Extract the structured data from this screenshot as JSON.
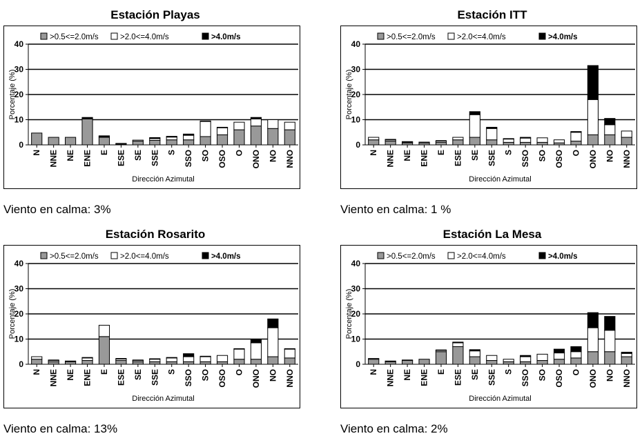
{
  "colors": {
    "low": "#999999",
    "mid": "#ffffff",
    "high": "#000000",
    "grid": "#000000"
  },
  "charts": [
    {
      "title": "Estación Playas",
      "calm_text": "Viento en calma: 3%",
      "chart_data": {
        "type": "bar",
        "stacked": true,
        "categories": [
          "N",
          "NNE",
          "NE",
          "ENE",
          "E",
          "ESE",
          "SE",
          "SSE",
          "S",
          "SSO",
          "SO",
          "OSO",
          "O",
          "ONO",
          "NO",
          "NNO"
        ],
        "series": [
          {
            "name": ">0.5<=2.0m/s",
            "values": [
              4.7,
              3.0,
              3.0,
              10.3,
              3.0,
              0.3,
              1.5,
              1.8,
              2.0,
              2.0,
              3.3,
              4.0,
              6.0,
              7.5,
              6.5,
              6.0
            ]
          },
          {
            "name": ">2.0<=4.0m/s",
            "values": [
              0,
              0,
              0,
              0,
              0.3,
              0.3,
              0.4,
              0.7,
              1.1,
              1.8,
              6.0,
              2.8,
              3.0,
              2.8,
              3.5,
              3.0
            ]
          },
          {
            "name": ">4.0m/s",
            "values": [
              0,
              0,
              0,
              0.6,
              0.3,
              0,
              0,
              0.4,
              0.3,
              0.5,
              0.2,
              0.2,
              0,
              0.6,
              0,
              0
            ]
          }
        ],
        "ylabel": "Porcentaje (%)",
        "xlabel": "Dirección Azimutal",
        "ylim": [
          0,
          40
        ],
        "yticks": [
          "0",
          "10",
          "20",
          "30",
          "40"
        ],
        "grid": true,
        "legend_position": "top"
      }
    },
    {
      "title": "Estación ITT",
      "calm_text": "Viento en calma: 1 %",
      "chart_data": {
        "type": "bar",
        "stacked": true,
        "categories": [
          "N",
          "NNE",
          "NE",
          "ENE",
          "E",
          "ESE",
          "SE",
          "SSE",
          "S",
          "SSO",
          "SO",
          "OSO",
          "O",
          "ONO",
          "NO",
          "NNO"
        ],
        "series": [
          {
            "name": ">0.5<=2.0m/s",
            "values": [
              2.0,
              1.5,
              0.8,
              0.8,
              1.0,
              2.0,
              3.0,
              2.0,
              1.0,
              1.0,
              1.0,
              0.8,
              1.5,
              4.0,
              4.0,
              3.0
            ]
          },
          {
            "name": ">2.0<=4.0m/s",
            "values": [
              1.0,
              0.5,
              0.3,
              0.3,
              0.5,
              1.0,
              9.0,
              4.5,
              1.3,
              1.7,
              1.8,
              1.2,
              3.5,
              14.0,
              4.0,
              2.5
            ]
          },
          {
            "name": ">4.0m/s",
            "values": [
              0,
              0.2,
              0.2,
              0,
              0.2,
              0,
              1.2,
              0.5,
              0.2,
              0.3,
              0,
              0,
              0.3,
              13.5,
              2.5,
              0
            ]
          }
        ],
        "ylabel": "Porcentaje (%)",
        "xlabel": "Dirección Azimutal",
        "ylim": [
          0,
          40
        ],
        "yticks": [
          "0",
          "10",
          "20",
          "30",
          "40"
        ],
        "grid": true,
        "legend_position": "top"
      }
    },
    {
      "title": "Estación Rosarito",
      "calm_text": "Viento en calma: 13%",
      "chart_data": {
        "type": "bar",
        "stacked": true,
        "categories": [
          "N",
          "NNE",
          "NE",
          "ENE",
          "E",
          "ESE",
          "SE",
          "SSE",
          "S",
          "SSO",
          "SO",
          "OSO",
          "O",
          "ONO",
          "NO",
          "NNO"
        ],
        "series": [
          {
            "name": ">0.5<=2.0m/s",
            "values": [
              2.0,
              1.0,
              1.0,
              1.5,
              11.0,
              1.5,
              1.0,
              1.0,
              1.0,
              1.0,
              1.0,
              1.0,
              2.0,
              2.0,
              3.0,
              2.5
            ]
          },
          {
            "name": ">2.0<=4.0m/s",
            "values": [
              1.0,
              0.5,
              0.3,
              1.0,
              4.5,
              0.6,
              0.5,
              1.0,
              1.5,
              2.0,
              2.0,
              2.5,
              4.0,
              6.5,
              11.5,
              3.5
            ]
          },
          {
            "name": ">4.0m/s",
            "values": [
              0,
              0.2,
              0,
              0.2,
              0,
              0.2,
              0.2,
              0.2,
              0.2,
              1.2,
              0.2,
              0,
              0.2,
              1.5,
              3.5,
              0.2
            ]
          }
        ],
        "ylabel": "Porcentaje (%)",
        "xlabel": "Dirección Azimutal",
        "ylim": [
          0,
          40
        ],
        "yticks": [
          "0",
          "10",
          "20",
          "30",
          "40"
        ],
        "grid": true,
        "legend_position": "top"
      }
    },
    {
      "title": "Estación La Mesa",
      "calm_text": "Viento en calma: 2%",
      "chart_data": {
        "type": "bar",
        "stacked": true,
        "categories": [
          "N",
          "NNE",
          "NE",
          "ENE",
          "E",
          "ESE",
          "SE",
          "SSE",
          "S",
          "SSO",
          "SO",
          "OSO",
          "O",
          "ONO",
          "NO",
          "NNO"
        ],
        "series": [
          {
            "name": ">0.5<=2.0m/s",
            "values": [
              2.0,
              1.0,
              1.5,
              2.0,
              5.0,
              7.0,
              3.0,
              1.5,
              1.0,
              1.0,
              1.5,
              2.0,
              2.5,
              5.0,
              5.0,
              3.0
            ]
          },
          {
            "name": ">2.0<=4.0m/s",
            "values": [
              0.3,
              0.3,
              0.2,
              0,
              0.5,
              1.5,
              2.3,
              2.0,
              1.0,
              2.0,
              2.5,
              2.5,
              2.5,
              9.5,
              8.5,
              1.3
            ]
          },
          {
            "name": ">4.0m/s",
            "values": [
              0,
              0,
              0,
              0,
              0.2,
              0.3,
              0.5,
              0,
              0,
              0.5,
              0,
              1.5,
              2.0,
              6.0,
              5.5,
              0.5
            ]
          }
        ],
        "ylabel": "Porcentaje (%)",
        "xlabel": "Dirección Azimutal",
        "ylim": [
          0,
          40
        ],
        "yticks": [
          "0",
          "10",
          "20",
          "30",
          "40"
        ],
        "grid": true,
        "legend_position": "top"
      }
    }
  ]
}
